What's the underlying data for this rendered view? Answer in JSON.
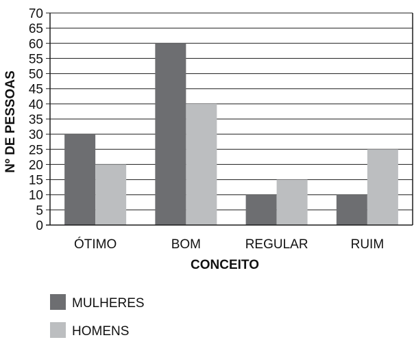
{
  "chart_data": {
    "type": "bar",
    "title": "",
    "xlabel": "CONCEITO",
    "ylabel": "Nº DE PESSOAS",
    "ylim": [
      0,
      70
    ],
    "yticks": [
      0,
      5,
      10,
      15,
      20,
      25,
      30,
      35,
      40,
      45,
      50,
      55,
      60,
      65,
      70
    ],
    "grid": true,
    "legend_position": "bottom-left",
    "categories": [
      "ÓTIMO",
      "BOM",
      "REGULAR",
      "RUIM"
    ],
    "series": [
      {
        "name": "MULHERES",
        "color": "#6d6e71",
        "values": [
          30,
          60,
          10,
          10
        ]
      },
      {
        "name": "HOMENS",
        "color": "#bcbec0",
        "values": [
          20,
          40,
          15,
          25
        ]
      }
    ]
  }
}
